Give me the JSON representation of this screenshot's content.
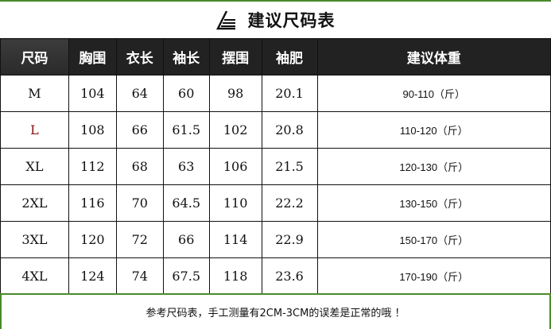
{
  "title": "建议尺码表",
  "icon": "triangle-logo-icon",
  "accent_color": "#4a8a2a",
  "headers": [
    "尺码",
    "胸围",
    "衣长",
    "袖长",
    "摆围",
    "袖肥",
    "建议体重"
  ],
  "rows": [
    [
      "M",
      "104",
      "64",
      "60",
      "98",
      "20.1",
      "90-110（斤）"
    ],
    [
      "L",
      "108",
      "66",
      "61.5",
      "102",
      "20.8",
      "110-120（斤）"
    ],
    [
      "XL",
      "112",
      "68",
      "63",
      "106",
      "21.5",
      "120-130（斤）"
    ],
    [
      "2XL",
      "116",
      "70",
      "64.5",
      "110",
      "22.2",
      "130-150（斤）"
    ],
    [
      "3XL",
      "120",
      "72",
      "66",
      "114",
      "22.9",
      "150-170（斤）"
    ],
    [
      "4XL",
      "124",
      "74",
      "67.5",
      "118",
      "23.6",
      "170-190（斤）"
    ]
  ],
  "footer": "参考尺码表，手工测量有2CM-3CM的误差是正常的哦 ！"
}
